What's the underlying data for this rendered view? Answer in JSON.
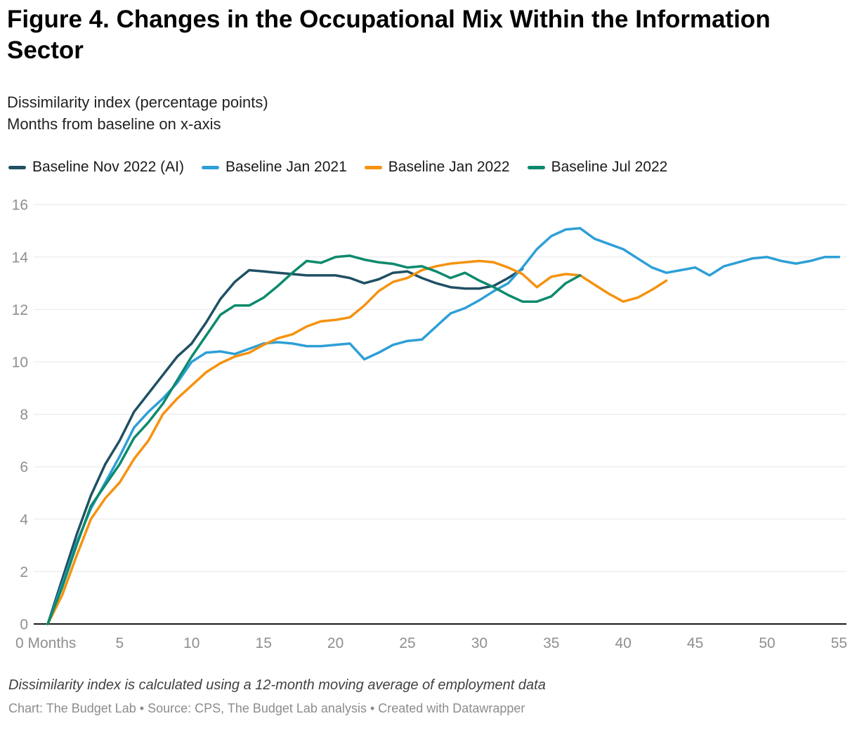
{
  "header": {
    "title": "Figure 4. Changes in the Occupational Mix Within the Information Sector"
  },
  "subtitle": {
    "line1": "Dissimilarity index (percentage points)",
    "line2": "Months from baseline on x-axis"
  },
  "footer": {
    "note": "Dissimilarity index is calculated using a 12-month moving average of employment data",
    "credit": "Chart: The Budget Lab • Source: CPS, The Budget Lab analysis • Created with Datawrapper"
  },
  "colors": {
    "axis_line": "#1a1a1a",
    "gridline": "#e7e7e7",
    "tick_label": "#8f8f8f",
    "text": "#1a1a1a"
  },
  "chart_data": {
    "type": "line",
    "title": "Figure 4. Changes in the Occupational Mix Within the Information Sector",
    "xlabel": "Months from baseline",
    "ylabel": "Dissimilarity index (percentage points)",
    "xlim": [
      0,
      55
    ],
    "ylim": [
      0,
      16
    ],
    "xticks": [
      0,
      5,
      10,
      15,
      20,
      25,
      30,
      35,
      40,
      45,
      50,
      55
    ],
    "x_first_tick_label": "0 Months",
    "yticks": [
      0,
      2,
      4,
      6,
      8,
      10,
      12,
      14,
      16
    ],
    "grid": true,
    "legend_position": "top",
    "series": [
      {
        "name": "Baseline Nov 2022 (AI)",
        "color": "#1f5063",
        "x_start": 0,
        "values": [
          0,
          1.7,
          3.4,
          4.9,
          6.1,
          7.0,
          8.1,
          8.8,
          9.5,
          10.2,
          10.7,
          11.5,
          12.4,
          13.05,
          13.5,
          13.45,
          13.4,
          13.35,
          13.3,
          13.3,
          13.3,
          13.2,
          13.0,
          13.15,
          13.4,
          13.45,
          13.2,
          13.0,
          12.85,
          12.8,
          12.8,
          12.9,
          13.2,
          13.55
        ]
      },
      {
        "name": "Baseline Jan 2021",
        "color": "#2e9fd7",
        "x_start": 0,
        "values": [
          0,
          1.5,
          3.1,
          4.4,
          5.4,
          6.4,
          7.5,
          8.1,
          8.6,
          9.2,
          10.0,
          10.35,
          10.4,
          10.3,
          10.5,
          10.7,
          10.75,
          10.7,
          10.6,
          10.6,
          10.65,
          10.7,
          10.1,
          10.35,
          10.65,
          10.8,
          10.85,
          11.35,
          11.85,
          12.05,
          12.35,
          12.7,
          13.0,
          13.6,
          14.3,
          14.8,
          15.05,
          15.1,
          14.7,
          14.5,
          14.3,
          13.95,
          13.6,
          13.4,
          13.5,
          13.6,
          13.3,
          13.65,
          13.8,
          13.95,
          14.0,
          13.85,
          13.75,
          13.85,
          14.0,
          14.0
        ]
      },
      {
        "name": "Baseline Jan 2022",
        "color": "#f5920f",
        "x_start": 0,
        "values": [
          0,
          1.1,
          2.6,
          4.0,
          4.8,
          5.4,
          6.3,
          7.0,
          8.0,
          8.6,
          9.1,
          9.6,
          9.95,
          10.2,
          10.35,
          10.65,
          10.9,
          11.05,
          11.35,
          11.55,
          11.6,
          11.7,
          12.15,
          12.7,
          13.05,
          13.2,
          13.5,
          13.65,
          13.75,
          13.8,
          13.85,
          13.8,
          13.6,
          13.35,
          12.85,
          13.25,
          13.35,
          13.3,
          12.95,
          12.6,
          12.3,
          12.45,
          12.75,
          13.1
        ]
      },
      {
        "name": "Baseline Jul 2022",
        "color": "#0c8a6c",
        "x_start": 0,
        "values": [
          0,
          1.4,
          3.0,
          4.5,
          5.3,
          6.1,
          7.1,
          7.7,
          8.4,
          9.3,
          10.2,
          11.0,
          11.8,
          12.15,
          12.15,
          12.45,
          12.9,
          13.4,
          13.85,
          13.78,
          14.0,
          14.05,
          13.9,
          13.8,
          13.74,
          13.6,
          13.65,
          13.45,
          13.2,
          13.4,
          13.1,
          12.85,
          12.55,
          12.3,
          12.3,
          12.5,
          13.0,
          13.3
        ]
      }
    ]
  }
}
